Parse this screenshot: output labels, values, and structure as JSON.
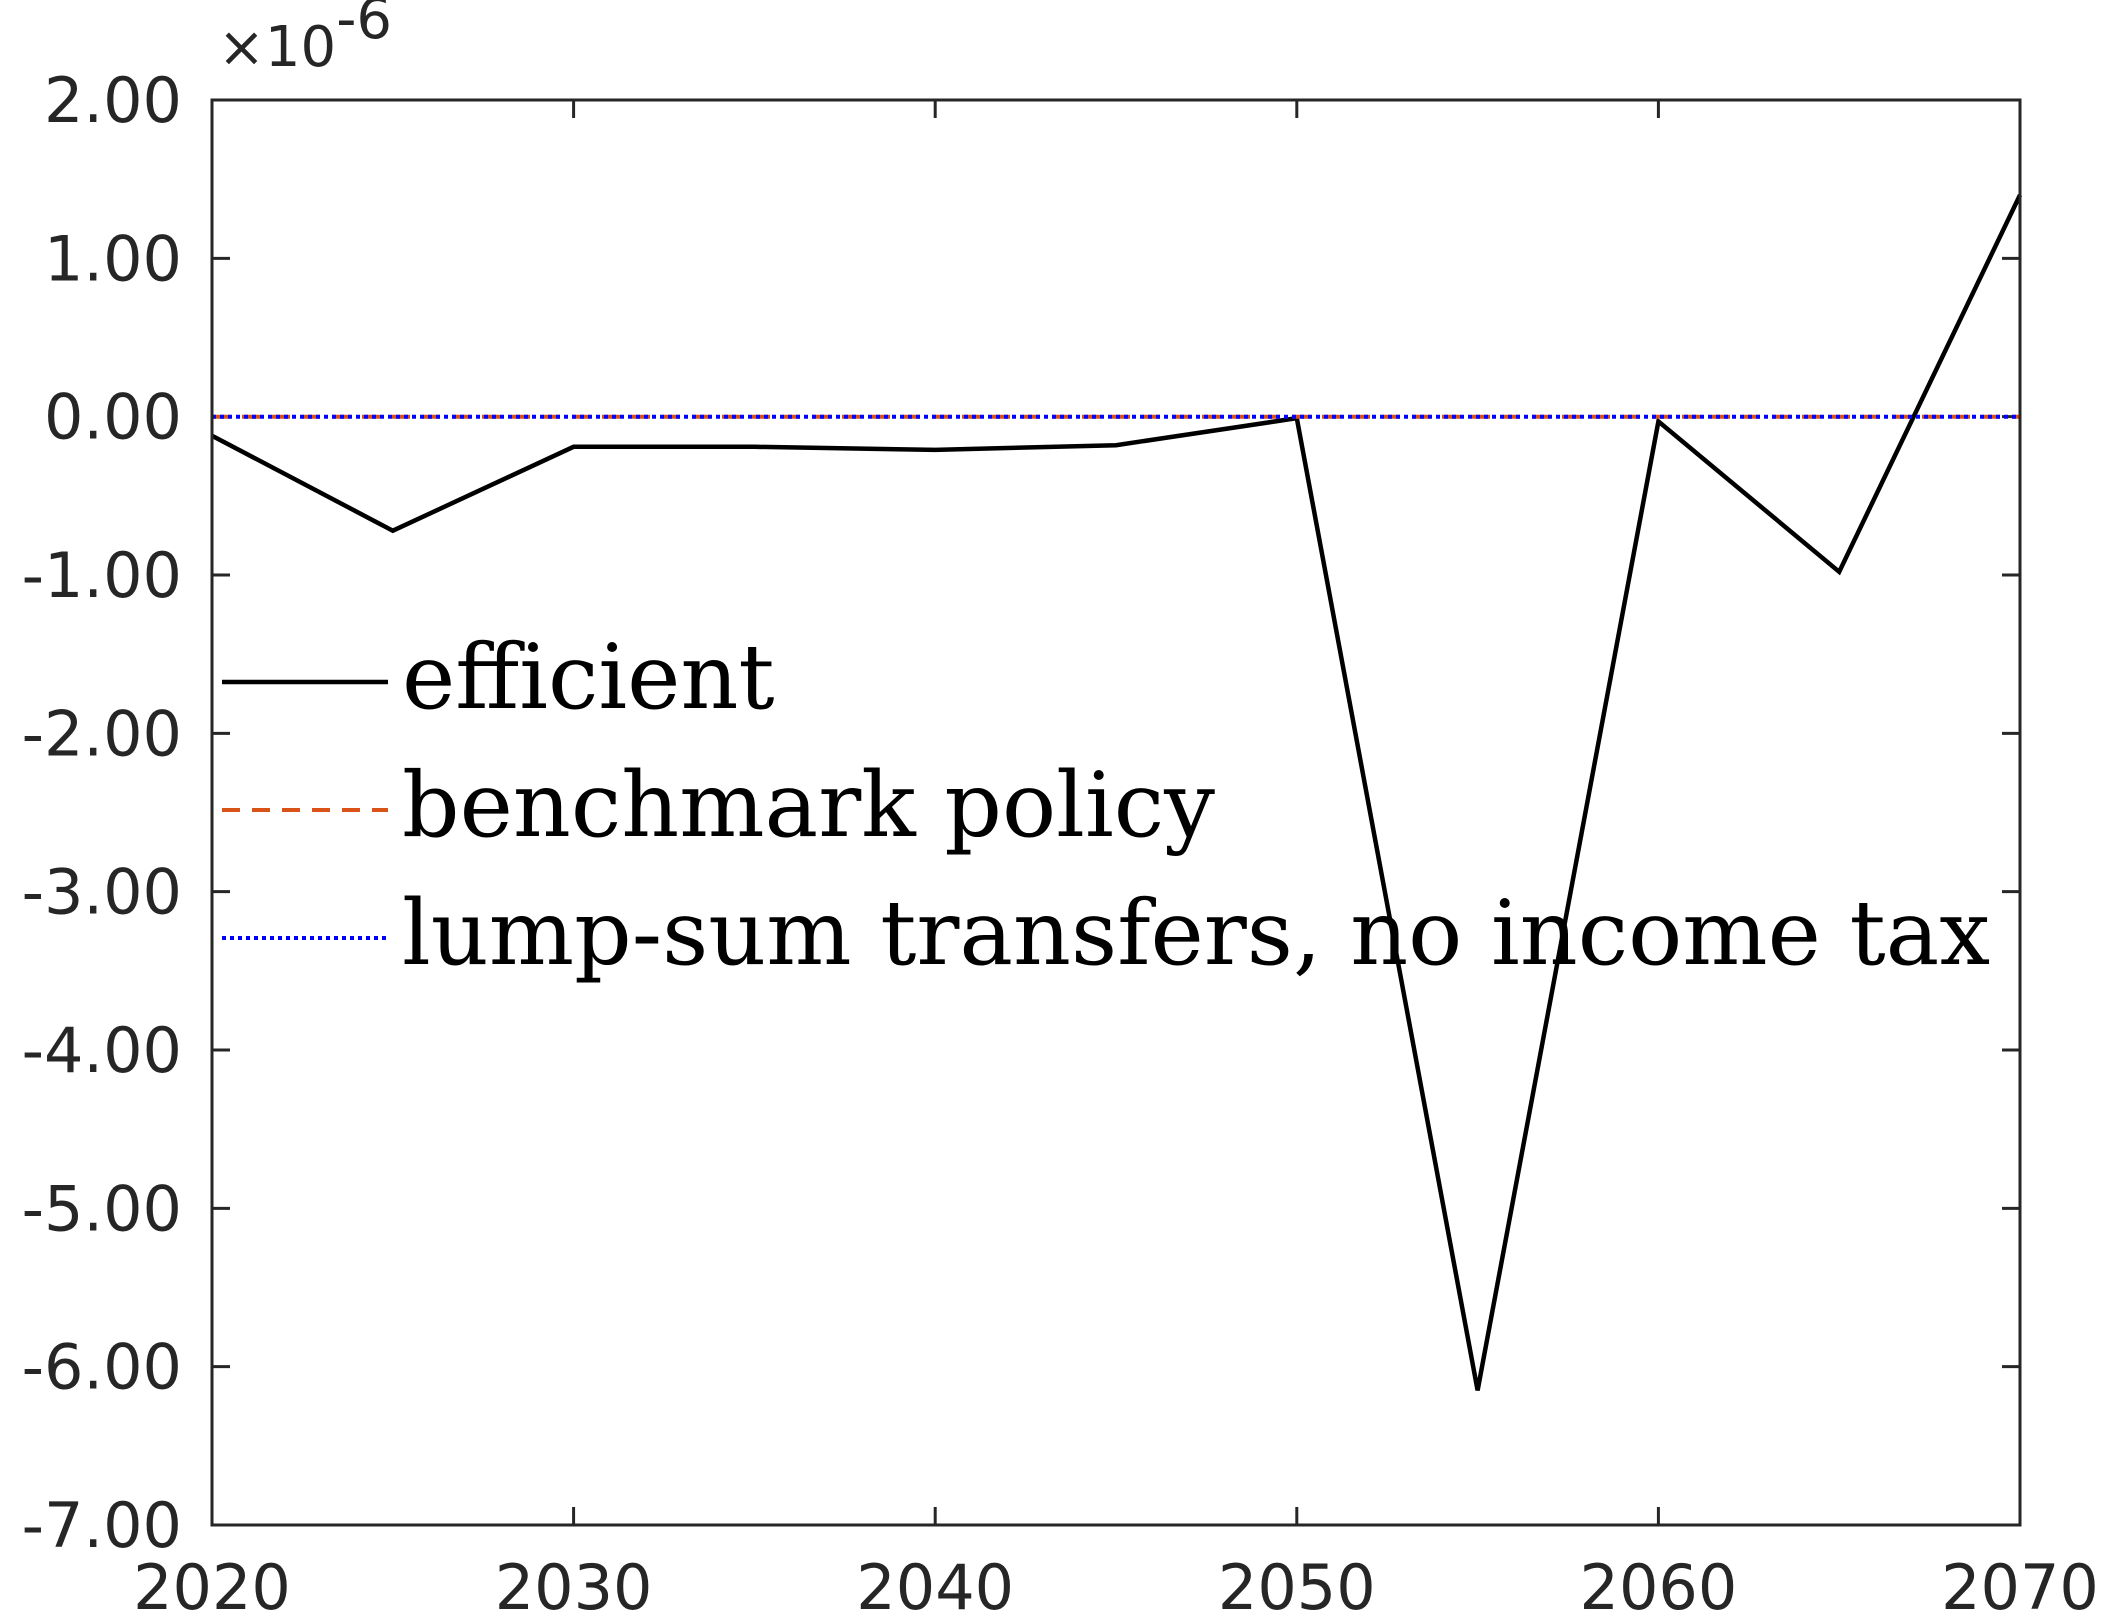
{
  "chart_data": {
    "type": "line",
    "title": "",
    "xlabel": "",
    "ylabel": "",
    "y_exponent_label": "×10",
    "y_exponent_power": "-6",
    "xlim": [
      2020,
      2070
    ],
    "ylim": [
      -7.0,
      2.0
    ],
    "x_ticks": [
      2020,
      2030,
      2040,
      2050,
      2060,
      2070
    ],
    "x_tick_labels": [
      "2020",
      "2030",
      "2040",
      "2050",
      "2060",
      "2070"
    ],
    "y_ticks": [
      2,
      1,
      0,
      -1,
      -2,
      -3,
      -4,
      -5,
      -6,
      -7
    ],
    "y_tick_labels": [
      "2.00",
      "1.00",
      "0.00",
      "-1.00",
      "-2.00",
      "-3.00",
      "-4.00",
      "-5.00",
      "-6.00",
      "-7.00"
    ],
    "grid": false,
    "legend_position": "middle-left",
    "x": [
      2020,
      2025,
      2030,
      2035,
      2040,
      2045,
      2050,
      2055,
      2060,
      2065,
      2070
    ],
    "series": [
      {
        "name": "efficient",
        "color": "#000000",
        "style": "solid",
        "values": [
          -0.12,
          -0.72,
          -0.19,
          -0.19,
          -0.21,
          -0.18,
          -0.01,
          -6.15,
          -0.03,
          -0.98,
          1.4
        ]
      },
      {
        "name": "benchmark policy",
        "color": "#D95319",
        "style": "dashed",
        "values": [
          0,
          0,
          0,
          0,
          0,
          0,
          0,
          0,
          0,
          0,
          0
        ]
      },
      {
        "name": "lump-sum transfers, no income tax",
        "color": "#0000FF",
        "style": "dotted",
        "values": [
          0,
          0,
          0,
          0,
          0,
          0,
          0,
          0,
          0,
          0,
          0
        ]
      }
    ]
  }
}
